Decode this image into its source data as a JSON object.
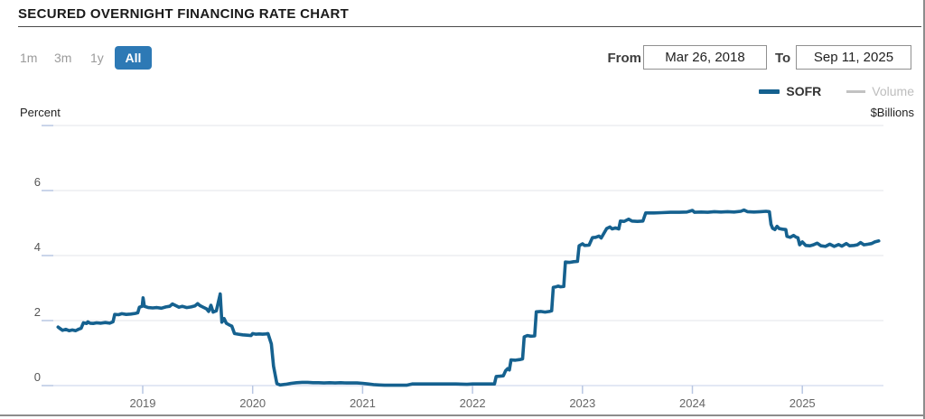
{
  "header": {
    "title": "SECURED OVERNIGHT FINANCING RATE CHART"
  },
  "controls": {
    "range_buttons": [
      {
        "label": "1m",
        "active": false
      },
      {
        "label": "3m",
        "active": false
      },
      {
        "label": "1y",
        "active": false
      },
      {
        "label": "All",
        "active": true
      }
    ],
    "from_label": "From",
    "from_value": "Mar 26, 2018",
    "to_label": "To",
    "to_value": "Sep 11, 2025"
  },
  "legend": [
    {
      "label": "SOFR",
      "color": "#15618f",
      "active": true
    },
    {
      "label": "Volume",
      "color": "#c2c2c2",
      "active": false
    }
  ],
  "axes": {
    "left_unit": "Percent",
    "right_unit": "$Billions"
  },
  "colors": {
    "line": "#15618f",
    "active_button": "#2d79b5",
    "gridline": "#e3e4e8",
    "grid_tick": "#b9c7e3",
    "baseline": "#c7d2e8"
  },
  "chart_data": {
    "type": "line",
    "title": "Secured Overnight Financing Rate",
    "xlabel": "",
    "ylabel": "Percent",
    "y2label": "$Billions",
    "ylim": [
      0,
      8
    ],
    "yticks": [
      0,
      2,
      4,
      6
    ],
    "xticks": [
      2019,
      2020,
      2021,
      2022,
      2023,
      2024,
      2025
    ],
    "x_range": [
      2018.23,
      2025.695
    ],
    "grid": true,
    "legend_position": "top-right",
    "series": [
      {
        "name": "SOFR",
        "color": "#15618f",
        "points": [
          [
            2018.23,
            1.8
          ],
          [
            2018.25,
            1.75
          ],
          [
            2018.27,
            1.7
          ],
          [
            2018.3,
            1.73
          ],
          [
            2018.33,
            1.69
          ],
          [
            2018.36,
            1.71
          ],
          [
            2018.39,
            1.69
          ],
          [
            2018.42,
            1.74
          ],
          [
            2018.44,
            1.76
          ],
          [
            2018.46,
            1.93
          ],
          [
            2018.49,
            1.91
          ],
          [
            2018.5,
            1.96
          ],
          [
            2018.52,
            1.92
          ],
          [
            2018.55,
            1.91
          ],
          [
            2018.58,
            1.93
          ],
          [
            2018.62,
            1.92
          ],
          [
            2018.66,
            1.94
          ],
          [
            2018.7,
            1.92
          ],
          [
            2018.73,
            1.96
          ],
          [
            2018.745,
            2.19
          ],
          [
            2018.78,
            2.18
          ],
          [
            2018.81,
            2.21
          ],
          [
            2018.85,
            2.19
          ],
          [
            2018.89,
            2.2
          ],
          [
            2018.93,
            2.22
          ],
          [
            2018.955,
            2.24
          ],
          [
            2018.97,
            2.41
          ],
          [
            2018.995,
            2.44
          ],
          [
            2019.003,
            2.7
          ],
          [
            2019.015,
            2.44
          ],
          [
            2019.05,
            2.4
          ],
          [
            2019.09,
            2.39
          ],
          [
            2019.13,
            2.4
          ],
          [
            2019.17,
            2.38
          ],
          [
            2019.21,
            2.42
          ],
          [
            2019.245,
            2.44
          ],
          [
            2019.27,
            2.51
          ],
          [
            2019.3,
            2.46
          ],
          [
            2019.33,
            2.41
          ],
          [
            2019.36,
            2.44
          ],
          [
            2019.4,
            2.4
          ],
          [
            2019.44,
            2.42
          ],
          [
            2019.475,
            2.45
          ],
          [
            2019.5,
            2.52
          ],
          [
            2019.52,
            2.46
          ],
          [
            2019.55,
            2.41
          ],
          [
            2019.58,
            2.36
          ],
          [
            2019.6,
            2.28
          ],
          [
            2019.62,
            2.47
          ],
          [
            2019.64,
            2.26
          ],
          [
            2019.67,
            2.3
          ],
          [
            2019.705,
            2.82
          ],
          [
            2019.72,
            1.95
          ],
          [
            2019.74,
            2.06
          ],
          [
            2019.76,
            1.92
          ],
          [
            2019.79,
            1.86
          ],
          [
            2019.81,
            1.83
          ],
          [
            2019.835,
            1.6
          ],
          [
            2019.87,
            1.58
          ],
          [
            2019.91,
            1.56
          ],
          [
            2019.95,
            1.55
          ],
          [
            2019.985,
            1.54
          ],
          [
            2020.0,
            1.6
          ],
          [
            2020.03,
            1.58
          ],
          [
            2020.06,
            1.59
          ],
          [
            2020.09,
            1.58
          ],
          [
            2020.12,
            1.59
          ],
          [
            2020.14,
            1.6
          ],
          [
            2020.17,
            1.28
          ],
          [
            2020.19,
            0.6
          ],
          [
            2020.22,
            0.06
          ],
          [
            2020.25,
            0.02
          ],
          [
            2020.3,
            0.04
          ],
          [
            2020.35,
            0.07
          ],
          [
            2020.4,
            0.09
          ],
          [
            2020.45,
            0.1
          ],
          [
            2020.5,
            0.1
          ],
          [
            2020.55,
            0.09
          ],
          [
            2020.6,
            0.09
          ],
          [
            2020.65,
            0.08
          ],
          [
            2020.7,
            0.09
          ],
          [
            2020.75,
            0.08
          ],
          [
            2020.8,
            0.09
          ],
          [
            2020.85,
            0.08
          ],
          [
            2020.9,
            0.08
          ],
          [
            2020.95,
            0.08
          ],
          [
            2021.0,
            0.07
          ],
          [
            2021.05,
            0.05
          ],
          [
            2021.1,
            0.03
          ],
          [
            2021.15,
            0.02
          ],
          [
            2021.2,
            0.01
          ],
          [
            2021.3,
            0.01
          ],
          [
            2021.4,
            0.01
          ],
          [
            2021.45,
            0.05
          ],
          [
            2021.55,
            0.05
          ],
          [
            2021.65,
            0.05
          ],
          [
            2021.75,
            0.05
          ],
          [
            2021.85,
            0.05
          ],
          [
            2021.95,
            0.04
          ],
          [
            2022.0,
            0.05
          ],
          [
            2022.08,
            0.05
          ],
          [
            2022.15,
            0.05
          ],
          [
            2022.2,
            0.05
          ],
          [
            2022.215,
            0.28
          ],
          [
            2022.25,
            0.29
          ],
          [
            2022.28,
            0.3
          ],
          [
            2022.3,
            0.45
          ],
          [
            2022.32,
            0.52
          ],
          [
            2022.335,
            0.48
          ],
          [
            2022.35,
            0.79
          ],
          [
            2022.39,
            0.78
          ],
          [
            2022.43,
            0.8
          ],
          [
            2022.455,
            0.82
          ],
          [
            2022.47,
            1.5
          ],
          [
            2022.5,
            1.54
          ],
          [
            2022.53,
            1.52
          ],
          [
            2022.565,
            1.53
          ],
          [
            2022.58,
            2.27
          ],
          [
            2022.62,
            2.28
          ],
          [
            2022.66,
            2.26
          ],
          [
            2022.7,
            2.28
          ],
          [
            2022.72,
            2.3
          ],
          [
            2022.735,
            3.02
          ],
          [
            2022.76,
            3.04
          ],
          [
            2022.78,
            3.06
          ],
          [
            2022.8,
            3.04
          ],
          [
            2022.83,
            3.05
          ],
          [
            2022.845,
            3.8
          ],
          [
            2022.88,
            3.79
          ],
          [
            2022.92,
            3.81
          ],
          [
            2022.955,
            3.82
          ],
          [
            2022.97,
            4.3
          ],
          [
            2023.0,
            4.36
          ],
          [
            2023.02,
            4.31
          ],
          [
            2023.06,
            4.32
          ],
          [
            2023.09,
            4.55
          ],
          [
            2023.12,
            4.56
          ],
          [
            2023.15,
            4.6
          ],
          [
            2023.17,
            4.54
          ],
          [
            2023.22,
            4.83
          ],
          [
            2023.25,
            4.88
          ],
          [
            2023.27,
            4.82
          ],
          [
            2023.3,
            4.85
          ],
          [
            2023.33,
            4.82
          ],
          [
            2023.345,
            5.06
          ],
          [
            2023.38,
            5.05
          ],
          [
            2023.42,
            5.12
          ],
          [
            2023.45,
            5.06
          ],
          [
            2023.5,
            5.05
          ],
          [
            2023.55,
            5.06
          ],
          [
            2023.575,
            5.31
          ],
          [
            2023.65,
            5.31
          ],
          [
            2023.72,
            5.32
          ],
          [
            2023.8,
            5.33
          ],
          [
            2023.88,
            5.33
          ],
          [
            2023.95,
            5.34
          ],
          [
            2024.0,
            5.39
          ],
          [
            2024.02,
            5.33
          ],
          [
            2024.08,
            5.34
          ],
          [
            2024.14,
            5.33
          ],
          [
            2024.2,
            5.35
          ],
          [
            2024.26,
            5.34
          ],
          [
            2024.32,
            5.35
          ],
          [
            2024.38,
            5.34
          ],
          [
            2024.44,
            5.36
          ],
          [
            2024.47,
            5.4
          ],
          [
            2024.5,
            5.35
          ],
          [
            2024.56,
            5.34
          ],
          [
            2024.62,
            5.35
          ],
          [
            2024.67,
            5.36
          ],
          [
            2024.7,
            5.35
          ],
          [
            2024.715,
            4.96
          ],
          [
            2024.73,
            4.84
          ],
          [
            2024.75,
            4.8
          ],
          [
            2024.77,
            4.9
          ],
          [
            2024.79,
            4.83
          ],
          [
            2024.82,
            4.81
          ],
          [
            2024.85,
            4.8
          ],
          [
            2024.86,
            4.59
          ],
          [
            2024.89,
            4.56
          ],
          [
            2024.92,
            4.62
          ],
          [
            2024.945,
            4.56
          ],
          [
            2024.96,
            4.55
          ],
          [
            2024.975,
            4.33
          ],
          [
            2025.0,
            4.42
          ],
          [
            2025.03,
            4.31
          ],
          [
            2025.07,
            4.3
          ],
          [
            2025.1,
            4.33
          ],
          [
            2025.135,
            4.38
          ],
          [
            2025.17,
            4.3
          ],
          [
            2025.21,
            4.28
          ],
          [
            2025.25,
            4.35
          ],
          [
            2025.29,
            4.28
          ],
          [
            2025.33,
            4.34
          ],
          [
            2025.36,
            4.29
          ],
          [
            2025.4,
            4.37
          ],
          [
            2025.43,
            4.3
          ],
          [
            2025.47,
            4.31
          ],
          [
            2025.5,
            4.33
          ],
          [
            2025.53,
            4.4
          ],
          [
            2025.56,
            4.33
          ],
          [
            2025.6,
            4.35
          ],
          [
            2025.63,
            4.37
          ],
          [
            2025.66,
            4.42
          ],
          [
            2025.695,
            4.45
          ]
        ]
      }
    ]
  }
}
